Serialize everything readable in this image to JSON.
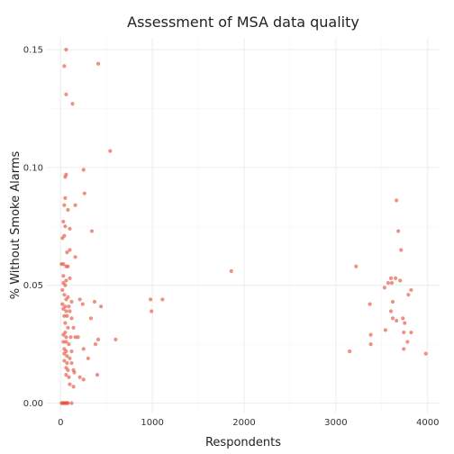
{
  "chart_data": {
    "type": "scatter",
    "title": "Assessment of MSA data quality",
    "xlabel": "Respondents",
    "ylabel": "% Without Smoke Alarms",
    "xlim": [
      -150,
      4130
    ],
    "ylim": [
      -0.004,
      0.155
    ],
    "xticks": [
      0,
      1000,
      2000,
      3000,
      4000
    ],
    "xtick_labels": [
      "0",
      "1000",
      "2000",
      "3000",
      "4000"
    ],
    "yticks": [
      0.0,
      0.05,
      0.1,
      0.15
    ],
    "ytick_labels": [
      "0.00",
      "0.05",
      "0.10",
      "0.15"
    ],
    "grid": true,
    "point_color": "#e5543f",
    "series": [
      {
        "points": [
          [
            60,
            0.15
          ],
          [
            40,
            0.143
          ],
          [
            60,
            0.131
          ],
          [
            130,
            0.127
          ],
          [
            410,
            0.144
          ],
          [
            540,
            0.107
          ],
          [
            60,
            0.097
          ],
          [
            50,
            0.096
          ],
          [
            250,
            0.099
          ],
          [
            260,
            0.089
          ],
          [
            160,
            0.084
          ],
          [
            50,
            0.087
          ],
          [
            40,
            0.084
          ],
          [
            80,
            0.082
          ],
          [
            340,
            0.073
          ],
          [
            30,
            0.077
          ],
          [
            50,
            0.075
          ],
          [
            100,
            0.074
          ],
          [
            20,
            0.07
          ],
          [
            40,
            0.071
          ],
          [
            70,
            0.064
          ],
          [
            100,
            0.065
          ],
          [
            160,
            0.062
          ],
          [
            10,
            0.059
          ],
          [
            30,
            0.059
          ],
          [
            60,
            0.058
          ],
          [
            80,
            0.058
          ],
          [
            30,
            0.054
          ],
          [
            60,
            0.052
          ],
          [
            100,
            0.053
          ],
          [
            30,
            0.051
          ],
          [
            50,
            0.05
          ],
          [
            20,
            0.048
          ],
          [
            40,
            0.046
          ],
          [
            80,
            0.045
          ],
          [
            120,
            0.043
          ],
          [
            60,
            0.044
          ],
          [
            20,
            0.042
          ],
          [
            50,
            0.041
          ],
          [
            90,
            0.041
          ],
          [
            30,
            0.04
          ],
          [
            60,
            0.039
          ],
          [
            100,
            0.039
          ],
          [
            40,
            0.037
          ],
          [
            70,
            0.037
          ],
          [
            120,
            0.036
          ],
          [
            210,
            0.044
          ],
          [
            240,
            0.042
          ],
          [
            370,
            0.043
          ],
          [
            440,
            0.041
          ],
          [
            330,
            0.036
          ],
          [
            50,
            0.034
          ],
          [
            80,
            0.032
          ],
          [
            140,
            0.032
          ],
          [
            50,
            0.03
          ],
          [
            30,
            0.029
          ],
          [
            60,
            0.028
          ],
          [
            110,
            0.028
          ],
          [
            160,
            0.028
          ],
          [
            190,
            0.028
          ],
          [
            30,
            0.026
          ],
          [
            60,
            0.026
          ],
          [
            90,
            0.025
          ],
          [
            40,
            0.023
          ],
          [
            60,
            0.022
          ],
          [
            120,
            0.022
          ],
          [
            40,
            0.021
          ],
          [
            70,
            0.02
          ],
          [
            100,
            0.019
          ],
          [
            40,
            0.018
          ],
          [
            70,
            0.017
          ],
          [
            120,
            0.017
          ],
          [
            60,
            0.015
          ],
          [
            80,
            0.014
          ],
          [
            140,
            0.014
          ],
          [
            150,
            0.013
          ],
          [
            60,
            0.012
          ],
          [
            90,
            0.011
          ],
          [
            140,
            0.007
          ],
          [
            210,
            0.011
          ],
          [
            250,
            0.01
          ],
          [
            400,
            0.012
          ],
          [
            410,
            0.027
          ],
          [
            380,
            0.025
          ],
          [
            250,
            0.023
          ],
          [
            300,
            0.019
          ],
          [
            100,
            0.008
          ],
          [
            10,
            0.0
          ],
          [
            20,
            0.0
          ],
          [
            30,
            0.0
          ],
          [
            40,
            0.0
          ],
          [
            50,
            0.0
          ],
          [
            60,
            0.0
          ],
          [
            70,
            0.0
          ],
          [
            80,
            0.0
          ],
          [
            120,
            0.0
          ],
          [
            600,
            0.027
          ],
          [
            980,
            0.044
          ],
          [
            990,
            0.039
          ],
          [
            1110,
            0.044
          ],
          [
            1860,
            0.056
          ],
          [
            3220,
            0.058
          ],
          [
            3660,
            0.086
          ],
          [
            3680,
            0.073
          ],
          [
            3710,
            0.065
          ],
          [
            3600,
            0.053
          ],
          [
            3650,
            0.053
          ],
          [
            3700,
            0.052
          ],
          [
            3570,
            0.051
          ],
          [
            3610,
            0.051
          ],
          [
            3530,
            0.049
          ],
          [
            3820,
            0.048
          ],
          [
            3790,
            0.046
          ],
          [
            3370,
            0.042
          ],
          [
            3620,
            0.043
          ],
          [
            3600,
            0.039
          ],
          [
            3620,
            0.036
          ],
          [
            3660,
            0.035
          ],
          [
            3730,
            0.036
          ],
          [
            3750,
            0.034
          ],
          [
            3540,
            0.031
          ],
          [
            3740,
            0.03
          ],
          [
            3820,
            0.03
          ],
          [
            3380,
            0.029
          ],
          [
            3780,
            0.026
          ],
          [
            3380,
            0.025
          ],
          [
            3150,
            0.022
          ],
          [
            3740,
            0.023
          ],
          [
            3980,
            0.021
          ]
        ]
      }
    ]
  }
}
